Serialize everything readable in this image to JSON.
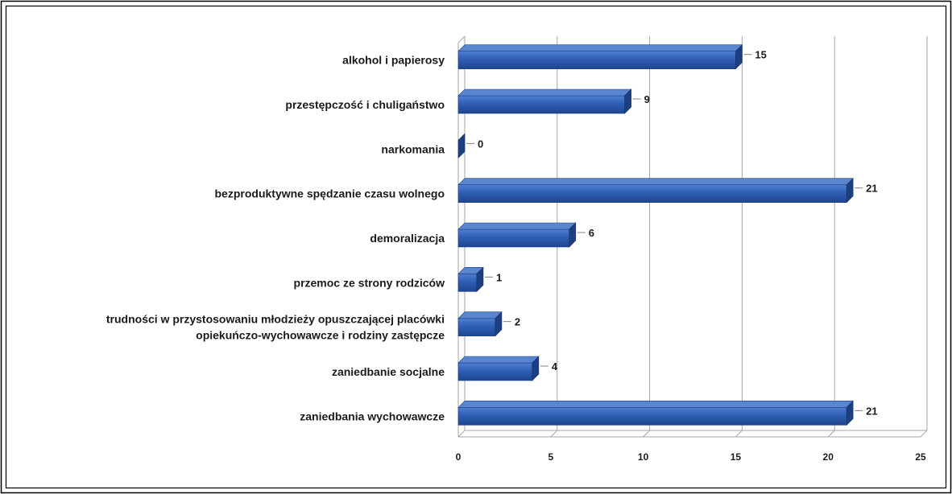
{
  "chart_data": {
    "type": "bar",
    "orientation": "horizontal",
    "title": "",
    "xlabel": "",
    "ylabel": "",
    "categories": [
      "alkohol i papierosy",
      "przestępczość i chuligaństwo",
      "narkomania",
      "bezproduktywne spędzanie czasu wolnego",
      "demoralizacja",
      "przemoc ze strony rodziców",
      "trudności w przystosowaniu młodzieży opuszczającej placówki opiekuńczo-wychowawcze i rodziny zastępcze",
      "zaniedbanie socjalne",
      "zaniedbania wychowawcze"
    ],
    "category_lines": [
      [
        "alkohol i papierosy"
      ],
      [
        "przestępczość i chuligaństwo"
      ],
      [
        "narkomania"
      ],
      [
        "bezproduktywne spędzanie czasu wolnego"
      ],
      [
        "demoralizacja"
      ],
      [
        "przemoc ze strony rodziców"
      ],
      [
        "trudności w przystosowaniu młodzieży opuszczającej placówki",
        "opiekuńczo-wychowawcze i rodziny zastępcze"
      ],
      [
        "zaniedbanie socjalne"
      ],
      [
        "zaniedbania wychowawcze"
      ]
    ],
    "values": [
      15,
      9,
      0,
      21,
      6,
      1,
      2,
      4,
      21
    ],
    "value_labels": [
      "15",
      "9",
      "0",
      "21",
      "6",
      "1",
      "2",
      "4",
      "21"
    ],
    "xlim": [
      0,
      25
    ],
    "x_ticks": [
      0,
      5,
      10,
      15,
      20,
      25
    ],
    "x_tick_labels": [
      "0",
      "5",
      "10",
      "15",
      "20",
      "25"
    ],
    "grid": true,
    "legend": "none",
    "bar_color": "#2f5fb3",
    "bar_top_color": "#5a86d0",
    "bar_side_color": "#1d3f80",
    "grid_color": "#a6a6a6"
  }
}
